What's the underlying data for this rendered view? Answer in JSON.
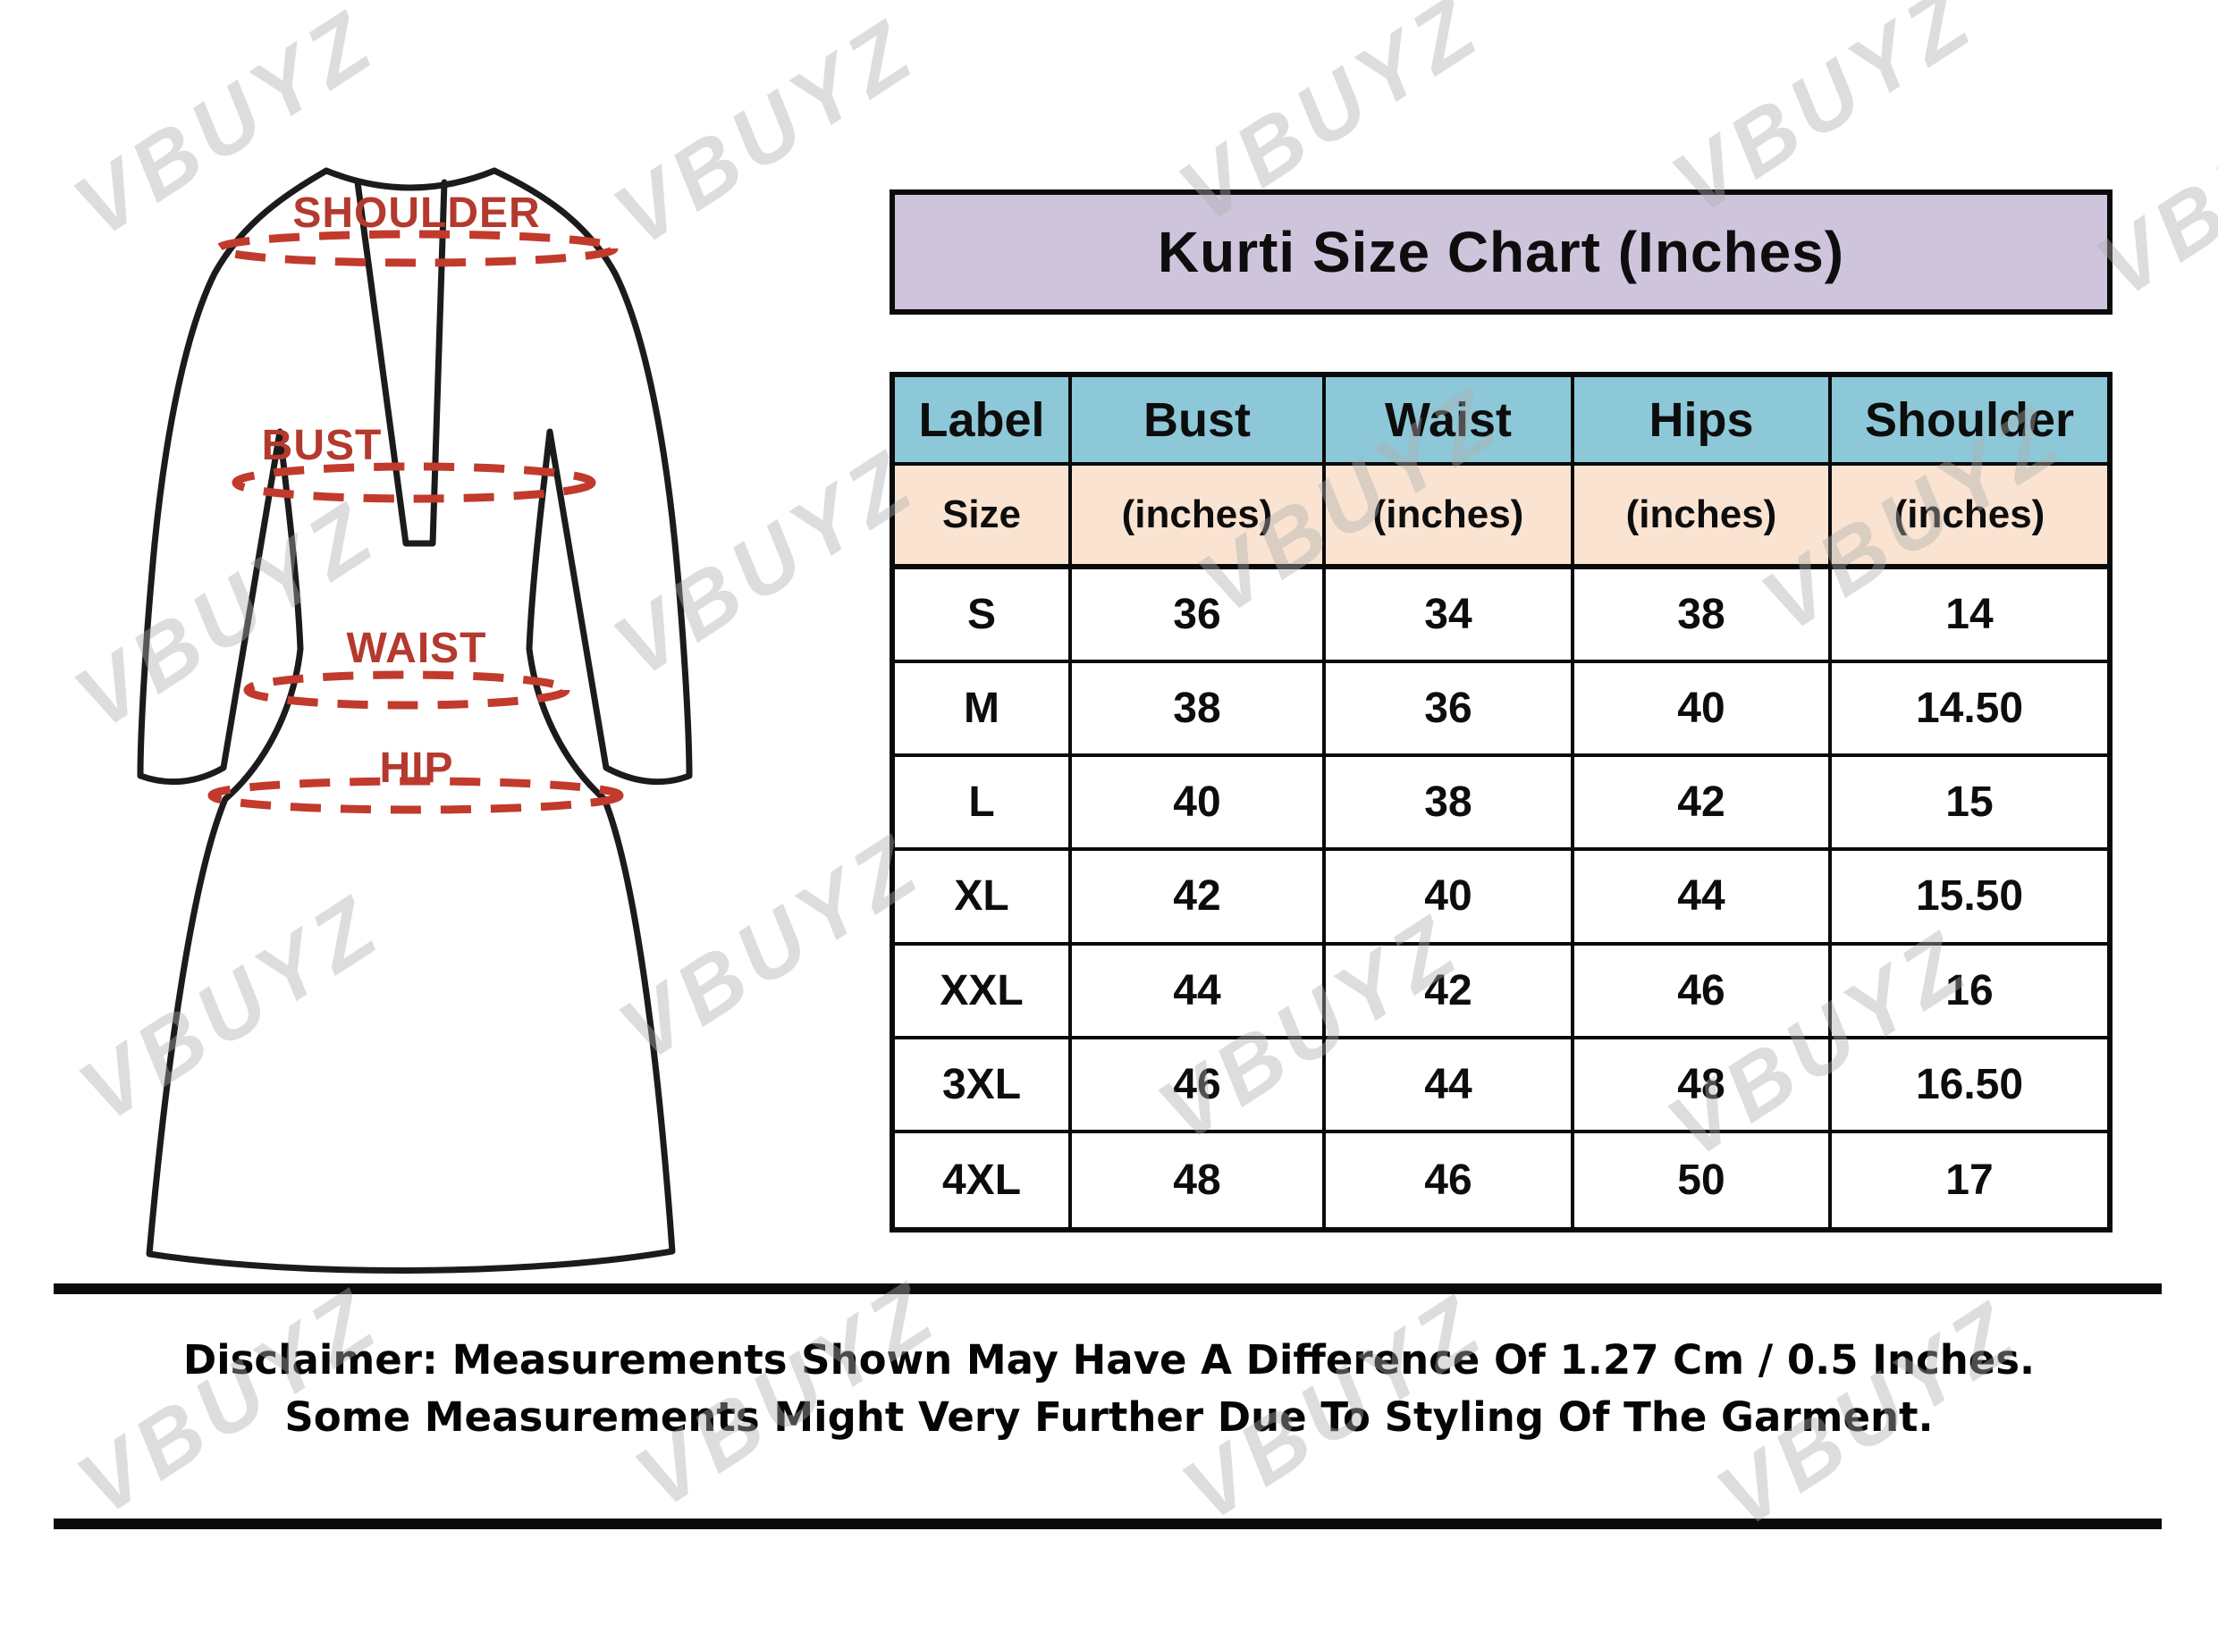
{
  "watermark_text": "VBUYZ",
  "diagram": {
    "shoulder_label": "SHOULDER",
    "bust_label": "BUST",
    "waist_label": "WAIST",
    "hip_label": "HIP"
  },
  "banner": {
    "title": "Kurti Size Chart (Inches)"
  },
  "table": {
    "headers": {
      "label": "Label",
      "bust": "Bust",
      "waist": "Waist",
      "hips": "Hips",
      "shoulder": "Shoulder"
    },
    "subheaders": {
      "label": "Size",
      "bust": "(inches)",
      "waist": "(inches)",
      "hips": "(inches)",
      "shoulder": "(inches)"
    },
    "rows": [
      {
        "size": "S",
        "bust": "36",
        "waist": "34",
        "hips": "38",
        "shoulder": "14"
      },
      {
        "size": "M",
        "bust": "38",
        "waist": "36",
        "hips": "40",
        "shoulder": "14.50"
      },
      {
        "size": "L",
        "bust": "40",
        "waist": "38",
        "hips": "42",
        "shoulder": "15"
      },
      {
        "size": "XL",
        "bust": "42",
        "waist": "40",
        "hips": "44",
        "shoulder": "15.50"
      },
      {
        "size": "XXL",
        "bust": "44",
        "waist": "42",
        "hips": "46",
        "shoulder": "16"
      },
      {
        "size": "3XL",
        "bust": "46",
        "waist": "44",
        "hips": "48",
        "shoulder": "16.50"
      },
      {
        "size": "4XL",
        "bust": "48",
        "waist": "46",
        "hips": "50",
        "shoulder": "17"
      }
    ]
  },
  "disclaimer": {
    "line1": "Disclaimer: Measurements Shown May Have A Difference Of 1.27 Cm / 0.5 Inches.",
    "line2": "Some Measurements Might Very Further Due To Styling Of The Garment."
  },
  "colors": {
    "banner_bg": "#cec4dc",
    "header_bg": "#8dc8d8",
    "subheader_bg": "#fae3d1",
    "label_red": "#b4392e",
    "dash_red": "#c13a2c",
    "line_black": "#0a0a0a"
  },
  "chart_data": {
    "type": "table",
    "title": "Kurti Size Chart (Inches)",
    "columns": [
      "Label Size",
      "Bust (inches)",
      "Waist (inches)",
      "Hips (inches)",
      "Shoulder (inches)"
    ],
    "rows": [
      [
        "S",
        36,
        34,
        38,
        14
      ],
      [
        "M",
        38,
        36,
        40,
        14.5
      ],
      [
        "L",
        40,
        38,
        42,
        15
      ],
      [
        "XL",
        42,
        40,
        44,
        15.5
      ],
      [
        "XXL",
        44,
        42,
        46,
        16
      ],
      [
        "3XL",
        46,
        44,
        48,
        16.5
      ],
      [
        "4XL",
        48,
        46,
        50,
        17
      ]
    ],
    "notes": [
      "Disclaimer: Measurements Shown May Have A Difference Of 1.27 Cm / 0.5 Inches.",
      "Some Measurements Might Very Further Due To Styling Of The Garment."
    ]
  }
}
